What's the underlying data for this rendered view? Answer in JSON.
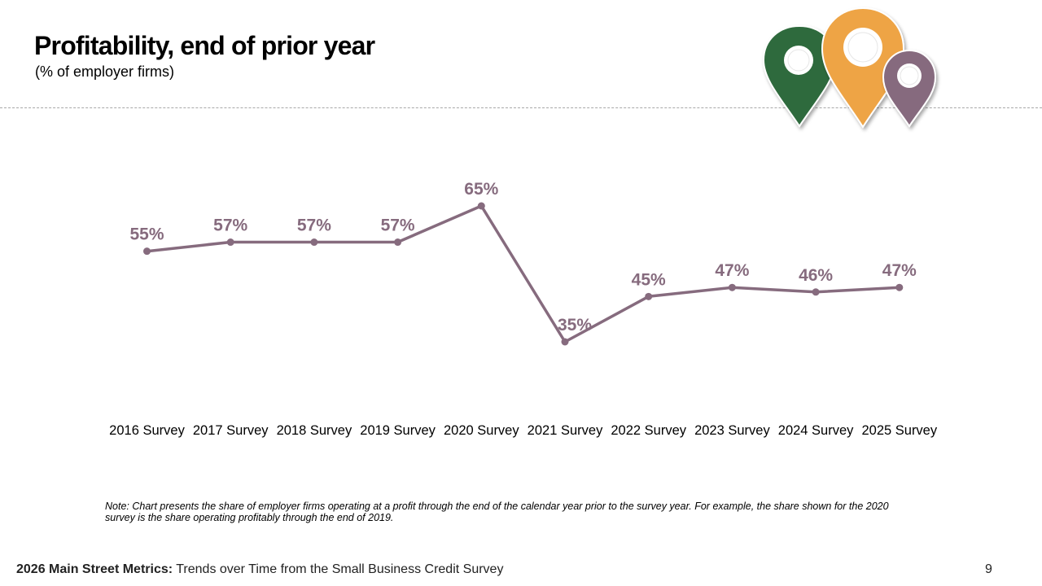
{
  "header": {
    "title": "Profitability, end of prior year",
    "subtitle": "(% of employer firms)"
  },
  "colors": {
    "series": "#866b7e",
    "pin_green": "#2f6b3c",
    "pin_orange": "#eea445",
    "pin_mauve": "#866b7e",
    "divider": "#a8a8a8"
  },
  "chart_data": {
    "type": "line",
    "title": "",
    "xlabel": "",
    "ylabel": "",
    "ylim": [
      0,
      100
    ],
    "grid": false,
    "categories": [
      "2016 Survey",
      "2017 Survey",
      "2018 Survey",
      "2019 Survey",
      "2020 Survey",
      "2021 Survey",
      "2022 Survey",
      "2023 Survey",
      "2024 Survey",
      "2025 Survey"
    ],
    "series": [
      {
        "name": "Profitability",
        "values": [
          55,
          57,
          57,
          57,
          65,
          35,
          45,
          47,
          46,
          47
        ],
        "labels": [
          "55%",
          "57%",
          "57%",
          "57%",
          "65%",
          "35%",
          "45%",
          "47%",
          "46%",
          "47%"
        ]
      }
    ]
  },
  "note": "Note: Chart presents the share of employer firms operating at a profit through the end of the calendar year prior to the survey year. For example, the share shown for the 2020 survey is the share operating profitably through the end of 2019.",
  "footer": {
    "bold": "2026 Main Street Metrics:",
    "text": " Trends over Time from the Small Business Credit Survey",
    "page": "9"
  }
}
